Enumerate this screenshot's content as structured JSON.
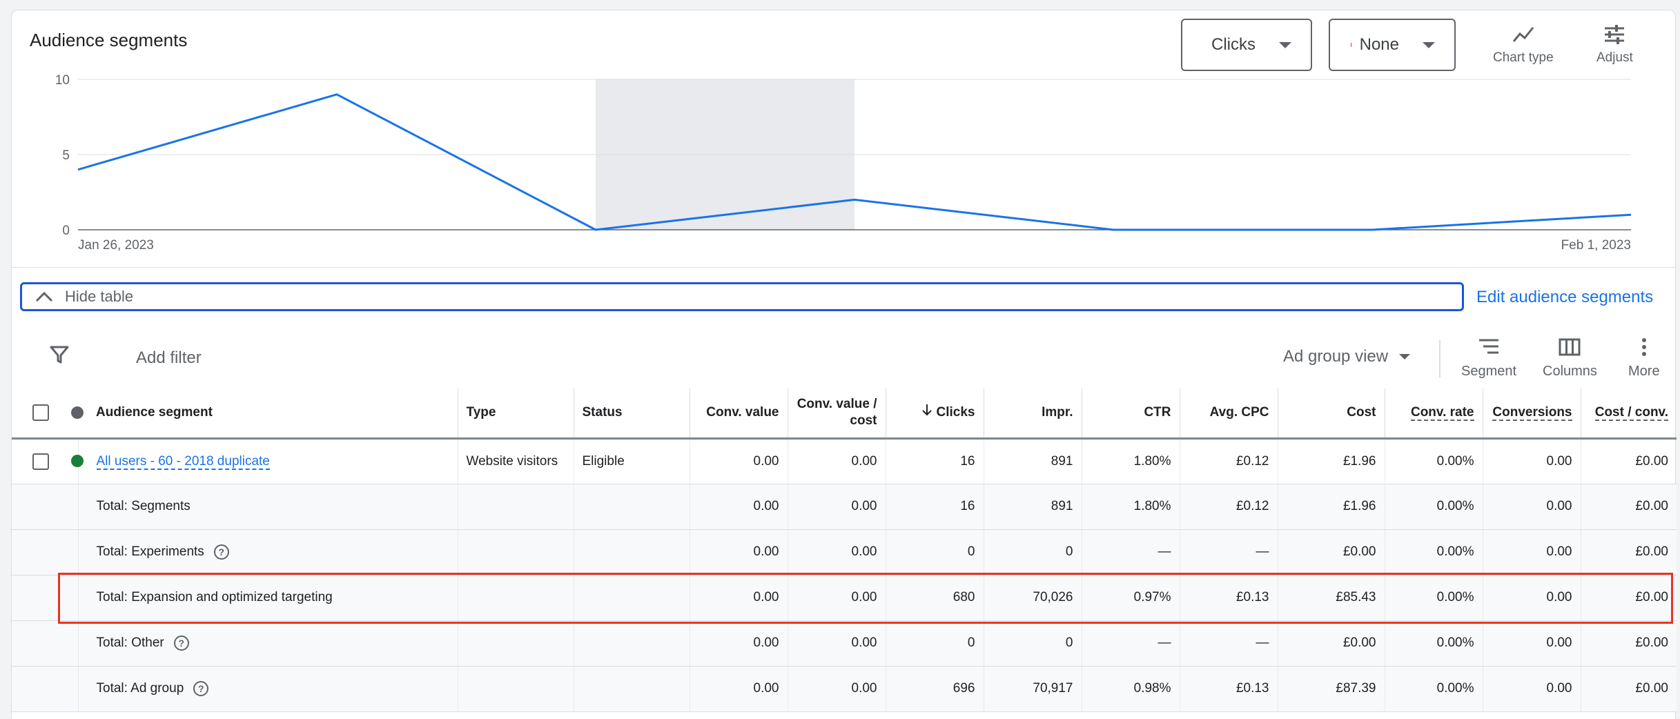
{
  "panel": {
    "title": "Audience segments"
  },
  "metrics": {
    "primary": {
      "label": "Clicks",
      "color": "#1a73e8"
    },
    "secondary": {
      "label": "None",
      "color": "#d93025"
    }
  },
  "tools": {
    "chart_type": "Chart type",
    "adjust": "Adjust"
  },
  "chart_data": {
    "type": "line",
    "x": [
      "Jan 26, 2023",
      "Jan 27, 2023",
      "Jan 28, 2023",
      "Jan 29, 2023",
      "Jan 30, 2023",
      "Jan 31, 2023",
      "Feb 1, 2023"
    ],
    "x_tick_labels": [
      "Jan 26, 2023",
      "Feb 1, 2023"
    ],
    "series": [
      {
        "name": "Clicks",
        "values": [
          4,
          9,
          0,
          2,
          0,
          0,
          1
        ],
        "color": "#1a73e8"
      }
    ],
    "y_ticks": [
      0,
      5,
      10
    ],
    "ylim": [
      0,
      10
    ],
    "shaded_range": [
      "Jan 28, 2023",
      "Jan 29, 2023"
    ],
    "grid": true
  },
  "hide_table": {
    "label": "Hide table"
  },
  "edit_link": "Edit audience segments",
  "toolbar": {
    "add_filter": "Add filter",
    "view": "Ad group view",
    "segment": "Segment",
    "columns": "Columns",
    "more": "More"
  },
  "table": {
    "headers": {
      "segment": "Audience segment",
      "type": "Type",
      "status": "Status",
      "conv_value": "Conv. value",
      "conv_value_cost_1": "Conv. value /",
      "conv_value_cost_2": "cost",
      "clicks": "Clicks",
      "impr": "Impr.",
      "ctr": "CTR",
      "avg_cpc": "Avg. CPC",
      "cost": "Cost",
      "conv_rate": "Conv. rate",
      "conversions": "Conversions",
      "cost_conv": "Cost / conv."
    },
    "status_dot_color": "#188038",
    "row": {
      "segment": "All users - 60 - 2018 duplicate",
      "type": "Website visitors",
      "status": "Eligible",
      "conv_value": "0.00",
      "conv_value_cost": "0.00",
      "clicks": "16",
      "impr": "891",
      "ctr": "1.80%",
      "avg_cpc": "£0.12",
      "cost": "£1.96",
      "conv_rate": "0.00%",
      "conversions": "0.00",
      "cost_conv": "£0.00"
    },
    "totals": [
      {
        "label": "Total: Segments",
        "conv_value": "0.00",
        "conv_value_cost": "0.00",
        "clicks": "16",
        "impr": "891",
        "ctr": "1.80%",
        "avg_cpc": "£0.12",
        "cost": "£1.96",
        "conv_rate": "0.00%",
        "conversions": "0.00",
        "cost_conv": "£0.00"
      },
      {
        "label": "Total: Experiments",
        "conv_value": "0.00",
        "conv_value_cost": "0.00",
        "clicks": "0",
        "impr": "0",
        "ctr": "—",
        "avg_cpc": "—",
        "cost": "£0.00",
        "conv_rate": "0.00%",
        "conversions": "0.00",
        "cost_conv": "£0.00"
      },
      {
        "label": "Total: Expansion and optimized targeting",
        "conv_value": "0.00",
        "conv_value_cost": "0.00",
        "clicks": "680",
        "impr": "70,026",
        "ctr": "0.97%",
        "avg_cpc": "£0.13",
        "cost": "£85.43",
        "conv_rate": "0.00%",
        "conversions": "0.00",
        "cost_conv": "£0.00"
      },
      {
        "label": "Total: Other",
        "conv_value": "0.00",
        "conv_value_cost": "0.00",
        "clicks": "0",
        "impr": "0",
        "ctr": "—",
        "avg_cpc": "—",
        "cost": "£0.00",
        "conv_rate": "0.00%",
        "conversions": "0.00",
        "cost_conv": "£0.00"
      },
      {
        "label": "Total: Ad group",
        "conv_value": "0.00",
        "conv_value_cost": "0.00",
        "clicks": "696",
        "impr": "70,917",
        "ctr": "0.98%",
        "avg_cpc": "£0.13",
        "cost": "£87.39",
        "conv_rate": "0.00%",
        "conversions": "0.00",
        "cost_conv": "£0.00"
      }
    ]
  }
}
